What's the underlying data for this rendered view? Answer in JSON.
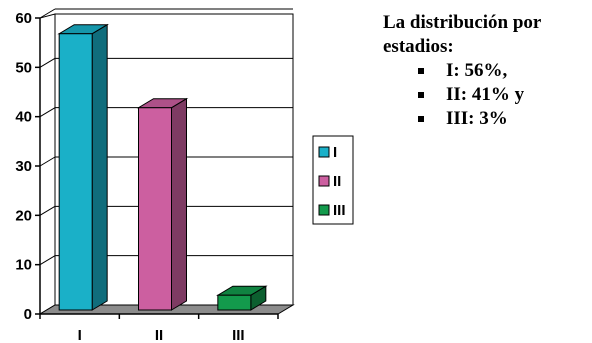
{
  "chart_data": {
    "type": "bar",
    "categories": [
      "I",
      "II",
      "III"
    ],
    "values": [
      56,
      41,
      3
    ],
    "ylim": [
      0,
      60
    ],
    "yticks": [
      0,
      10,
      20,
      30,
      40,
      50,
      60
    ],
    "series_colors": [
      "#1ab0c8",
      "#cc5fa0",
      "#139a4c"
    ],
    "legend": {
      "position": "right",
      "entries": [
        "I",
        "II",
        "III"
      ]
    },
    "grid": "horizontal",
    "style": "3d-column"
  },
  "side_text": {
    "heading": "La distribución por estadios:",
    "items": [
      "I: 56%,",
      "II: 41% y",
      "III: 3%"
    ]
  }
}
